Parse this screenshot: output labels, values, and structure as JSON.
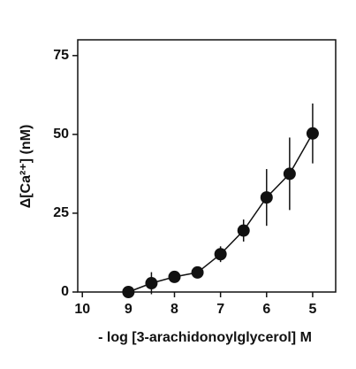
{
  "chart_data": {
    "type": "scatter",
    "x_label": "- log [3-arachidonoylglycerol] M",
    "y_label": "Δ[Ca²⁺] (nM)",
    "x": [
      9,
      8.5,
      8,
      7.5,
      7,
      6.5,
      6,
      5.5,
      5
    ],
    "series": [
      {
        "color": "#111111",
        "values": [
          0,
          2.8,
          4.8,
          6.2,
          12,
          19.5,
          30,
          37.5,
          50.3
        ],
        "errors": [
          0,
          3.5,
          1.5,
          1.5,
          2.5,
          3.5,
          9,
          11.5,
          9.5
        ]
      }
    ],
    "xlim": [
      10.1,
      4.5
    ],
    "xticks": [
      10,
      9,
      8,
      7,
      6,
      5
    ],
    "ylim": [
      0,
      80
    ],
    "yticks": [
      0,
      25,
      50,
      75
    ]
  }
}
